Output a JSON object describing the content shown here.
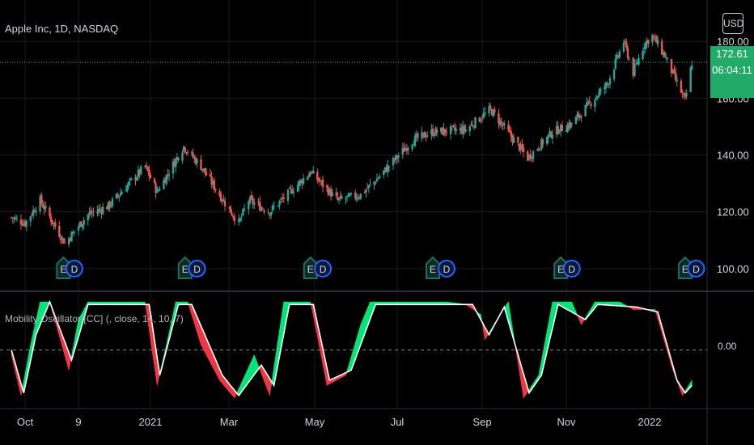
{
  "header": {
    "symbol_title": "Apple Inc, 1D, NASDAQ",
    "currency": "USD"
  },
  "price_badge": {
    "last_price": "172.61",
    "countdown": "06:04:11",
    "color": "#22ab68"
  },
  "indicator": {
    "title": "Mobility Oscillator [CC] (, close, 14, 10, 7)",
    "zero_label": "0.00"
  },
  "colors": {
    "background": "#000000",
    "up": "#26a69a",
    "up_body": "#2ebd85",
    "down": "#ef5350",
    "osc_up_fill": "#00e676",
    "osc_down_fill": "#f23645",
    "signal_line": "#ffffff",
    "earnings_marker": "#1e6e61",
    "dividend_marker": "#2962ff"
  },
  "chart_data": [
    {
      "type": "candlestick",
      "title": "Apple Inc, 1D, NASDAQ",
      "x_ticks": [
        "Oct",
        "9",
        "2021",
        "Mar",
        "May",
        "Jul",
        "Sep",
        "Nov",
        "2022"
      ],
      "y_ticks": [
        "100.00",
        "120.00",
        "140.00",
        "160.00",
        "180.00"
      ],
      "y_range": [
        96,
        186
      ],
      "last_price": 172.61,
      "countdown": "06:04:11",
      "close_path": [
        {
          "x": "2020-09-21",
          "y": 118
        },
        {
          "x": "2020-10-01",
          "y": 116
        },
        {
          "x": "2020-10-12",
          "y": 124
        },
        {
          "x": "2020-10-30",
          "y": 109
        },
        {
          "x": "2020-11-16",
          "y": 119
        },
        {
          "x": "2020-12-01",
          "y": 122
        },
        {
          "x": "2020-12-28",
          "y": 136
        },
        {
          "x": "2021-01-06",
          "y": 127
        },
        {
          "x": "2021-01-26",
          "y": 143
        },
        {
          "x": "2021-02-08",
          "y": 136
        },
        {
          "x": "2021-03-08",
          "y": 116
        },
        {
          "x": "2021-03-15",
          "y": 124
        },
        {
          "x": "2021-03-30",
          "y": 120
        },
        {
          "x": "2021-04-28",
          "y": 134
        },
        {
          "x": "2021-05-18",
          "y": 124
        },
        {
          "x": "2021-06-04",
          "y": 126
        },
        {
          "x": "2021-06-15",
          "y": 131
        },
        {
          "x": "2021-07-12",
          "y": 145
        },
        {
          "x": "2021-07-26",
          "y": 148
        },
        {
          "x": "2021-08-20",
          "y": 149
        },
        {
          "x": "2021-09-07",
          "y": 156
        },
        {
          "x": "2021-10-04",
          "y": 139
        },
        {
          "x": "2021-10-22",
          "y": 148
        },
        {
          "x": "2021-11-05",
          "y": 151
        },
        {
          "x": "2021-12-01",
          "y": 165
        },
        {
          "x": "2021-12-13",
          "y": 180
        },
        {
          "x": "2021-12-20",
          "y": 169
        },
        {
          "x": "2021-12-28",
          "y": 179
        },
        {
          "x": "2022-01-03",
          "y": 182
        },
        {
          "x": "2022-01-12",
          "y": 175
        },
        {
          "x": "2022-01-27",
          "y": 159
        },
        {
          "x": "2022-02-01",
          "y": 172.61
        }
      ],
      "events": [
        {
          "label": "E",
          "kind": "earnings",
          "date": "2020-10-29"
        },
        {
          "label": "D",
          "kind": "dividend",
          "date": "2020-11-06"
        },
        {
          "label": "E",
          "kind": "earnings",
          "date": "2021-01-27"
        },
        {
          "label": "D",
          "kind": "dividend",
          "date": "2021-02-05"
        },
        {
          "label": "E",
          "kind": "earnings",
          "date": "2021-04-28"
        },
        {
          "label": "D",
          "kind": "dividend",
          "date": "2021-05-07"
        },
        {
          "label": "E",
          "kind": "earnings",
          "date": "2021-07-27"
        },
        {
          "label": "D",
          "kind": "dividend",
          "date": "2021-08-06"
        },
        {
          "label": "E",
          "kind": "earnings",
          "date": "2021-10-28"
        },
        {
          "label": "D",
          "kind": "dividend",
          "date": "2021-11-05"
        },
        {
          "label": "E",
          "kind": "earnings",
          "date": "2022-01-27"
        },
        {
          "label": "D",
          "kind": "dividend",
          "date": "2022-02-04"
        }
      ]
    },
    {
      "type": "line",
      "title": "Mobility Oscillator [CC] (, close, 14, 10, 7)",
      "y_ticks": [
        "0.00"
      ],
      "y_range": [
        -1.0,
        1.0
      ],
      "oscillator": [
        {
          "x": "2020-09-21",
          "y": -0.1
        },
        {
          "x": "2020-09-28",
          "y": -0.9
        },
        {
          "x": "2020-10-05",
          "y": 0.1
        },
        {
          "x": "2020-10-12",
          "y": 0.95
        },
        {
          "x": "2020-10-19",
          "y": 0.95
        },
        {
          "x": "2020-11-02",
          "y": -0.4
        },
        {
          "x": "2020-11-09",
          "y": 0.6
        },
        {
          "x": "2020-11-16",
          "y": 0.95
        },
        {
          "x": "2020-12-28",
          "y": 0.95
        },
        {
          "x": "2021-01-06",
          "y": -0.7
        },
        {
          "x": "2021-01-13",
          "y": 0.1
        },
        {
          "x": "2021-01-20",
          "y": 0.95
        },
        {
          "x": "2021-01-29",
          "y": 0.95
        },
        {
          "x": "2021-02-08",
          "y": 0.1
        },
        {
          "x": "2021-02-22",
          "y": -0.6
        },
        {
          "x": "2021-03-05",
          "y": -0.95
        },
        {
          "x": "2021-03-19",
          "y": -0.1
        },
        {
          "x": "2021-03-30",
          "y": -0.9
        },
        {
          "x": "2021-04-09",
          "y": 0.95
        },
        {
          "x": "2021-04-28",
          "y": 0.95
        },
        {
          "x": "2021-05-10",
          "y": -0.7
        },
        {
          "x": "2021-05-24",
          "y": -0.5
        },
        {
          "x": "2021-06-04",
          "y": 0.5
        },
        {
          "x": "2021-06-11",
          "y": 0.95
        },
        {
          "x": "2021-07-23",
          "y": 0.95
        },
        {
          "x": "2021-08-06",
          "y": 0.95
        },
        {
          "x": "2021-08-20",
          "y": 0.9
        },
        {
          "x": "2021-08-31",
          "y": 0.7
        },
        {
          "x": "2021-09-03",
          "y": 0.2
        },
        {
          "x": "2021-09-14",
          "y": 0.7
        },
        {
          "x": "2021-09-20",
          "y": 0.95
        },
        {
          "x": "2021-10-01",
          "y": -0.95
        },
        {
          "x": "2021-10-12",
          "y": -0.5
        },
        {
          "x": "2021-10-22",
          "y": 0.95
        },
        {
          "x": "2021-11-05",
          "y": 0.95
        },
        {
          "x": "2021-11-12",
          "y": 0.5
        },
        {
          "x": "2021-11-22",
          "y": 0.95
        },
        {
          "x": "2021-12-10",
          "y": 0.95
        },
        {
          "x": "2021-12-20",
          "y": 0.8
        },
        {
          "x": "2022-01-05",
          "y": 0.8
        },
        {
          "x": "2022-01-18",
          "y": -0.4
        },
        {
          "x": "2022-01-25",
          "y": -0.9
        },
        {
          "x": "2022-02-01",
          "y": -0.6
        }
      ],
      "signal": [
        {
          "x": "2020-09-21",
          "y": 0.0
        },
        {
          "x": "2020-09-30",
          "y": -0.85
        },
        {
          "x": "2020-10-09",
          "y": 0.3
        },
        {
          "x": "2020-10-19",
          "y": 0.95
        },
        {
          "x": "2020-11-04",
          "y": -0.2
        },
        {
          "x": "2020-11-16",
          "y": 0.9
        },
        {
          "x": "2020-12-31",
          "y": 0.9
        },
        {
          "x": "2021-01-08",
          "y": -0.5
        },
        {
          "x": "2021-01-22",
          "y": 0.9
        },
        {
          "x": "2021-02-01",
          "y": 0.9
        },
        {
          "x": "2021-02-24",
          "y": -0.5
        },
        {
          "x": "2021-03-08",
          "y": -0.9
        },
        {
          "x": "2021-03-24",
          "y": -0.3
        },
        {
          "x": "2021-04-02",
          "y": -0.7
        },
        {
          "x": "2021-04-13",
          "y": 0.9
        },
        {
          "x": "2021-04-30",
          "y": 0.9
        },
        {
          "x": "2021-05-12",
          "y": -0.6
        },
        {
          "x": "2021-05-28",
          "y": -0.4
        },
        {
          "x": "2021-06-15",
          "y": 0.9
        },
        {
          "x": "2021-08-25",
          "y": 0.9
        },
        {
          "x": "2021-09-06",
          "y": 0.3
        },
        {
          "x": "2021-09-17",
          "y": 0.85
        },
        {
          "x": "2021-10-05",
          "y": -0.85
        },
        {
          "x": "2021-10-14",
          "y": -0.5
        },
        {
          "x": "2021-10-26",
          "y": 0.9
        },
        {
          "x": "2021-11-15",
          "y": 0.6
        },
        {
          "x": "2021-11-24",
          "y": 0.9
        },
        {
          "x": "2021-12-22",
          "y": 0.85
        },
        {
          "x": "2022-01-07",
          "y": 0.75
        },
        {
          "x": "2022-01-21",
          "y": -0.6
        },
        {
          "x": "2022-01-27",
          "y": -0.85
        },
        {
          "x": "2022-02-01",
          "y": -0.7
        }
      ]
    }
  ]
}
